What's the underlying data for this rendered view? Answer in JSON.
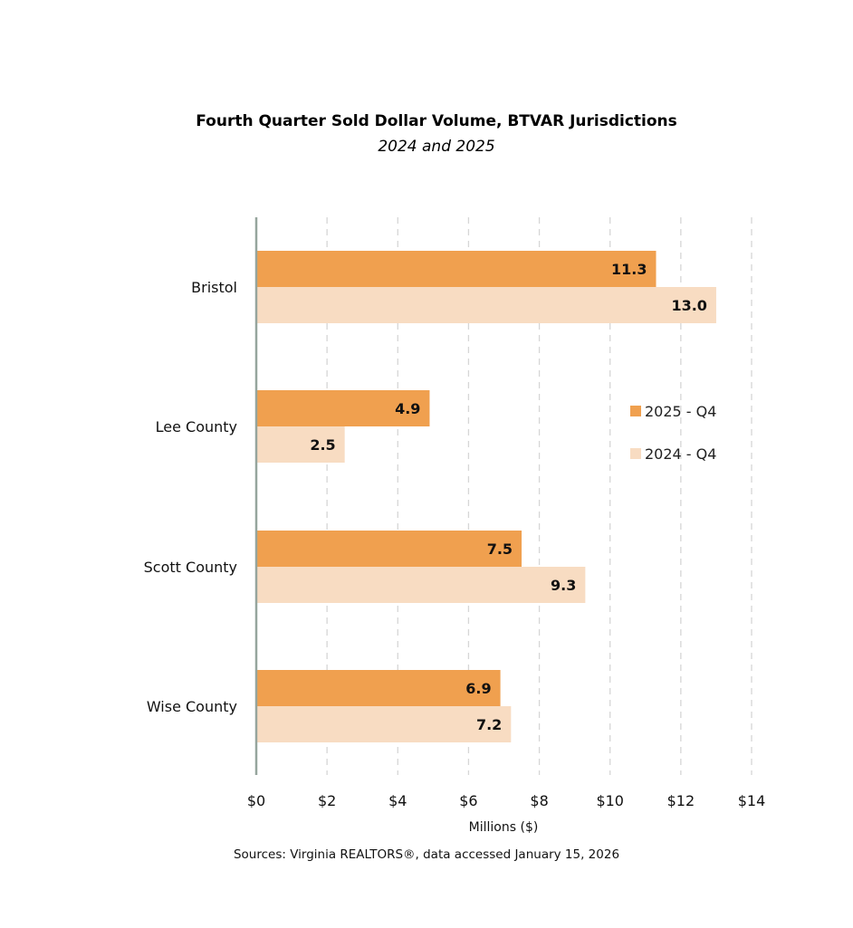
{
  "chart_data": {
    "type": "bar",
    "orientation": "horizontal",
    "title": "Fourth Quarter Sold Dollar Volume, BTVAR Jurisdictions",
    "subtitle": "2024 and 2025",
    "categories": [
      "Bristol",
      "Lee County",
      "Scott County",
      "Wise County"
    ],
    "series": [
      {
        "name": "2025 - Q4",
        "color": "#F0A04F",
        "values": [
          11.3,
          4.9,
          7.5,
          6.9
        ],
        "labels": [
          "11.3",
          "4.9",
          "7.5",
          "6.9"
        ]
      },
      {
        "name": "2024 - Q4",
        "color": "#F8DCC2",
        "values": [
          13.0,
          2.5,
          9.3,
          7.2
        ],
        "labels": [
          "13.0",
          "2.5",
          "9.3",
          "7.2"
        ]
      }
    ],
    "xlabel": "Millions ($)",
    "xlim": [
      0,
      14
    ],
    "xticks": [
      0,
      2,
      4,
      6,
      8,
      10,
      12,
      14
    ],
    "xtick_labels": [
      "$0",
      "$2",
      "$4",
      "$6",
      "$8",
      "$10",
      "$12",
      "$14"
    ],
    "grid": "vertical dashed",
    "legend": "right",
    "source": "Sources: Virginia REALTORS®, data accessed January 15, 2026"
  }
}
